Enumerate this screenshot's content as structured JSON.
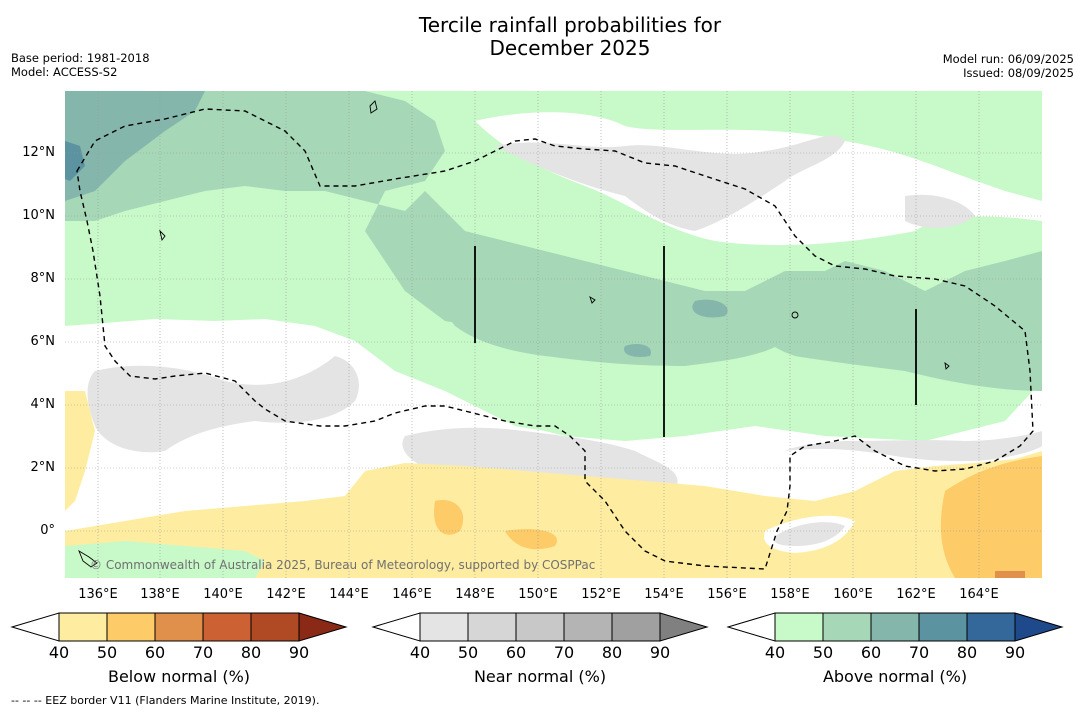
{
  "title_line1": "Tercile rainfall probabilities for",
  "title_line2": "December 2025",
  "base_period": "Base period: 1981-2018",
  "model": "Model: ACCESS-S2",
  "model_run": "Model run: 06/09/2025",
  "issued": "Issued: 08/09/2025",
  "copyright": "© Commonwealth of Australia 2025, Bureau of Meteorology, supported by COSPPac",
  "footer": "-- -- -- EEZ border V11 (Flanders Marine Institute, 2019).",
  "lat_ticks": [
    "12°N",
    "10°N",
    "8°N",
    "6°N",
    "4°N",
    "2°N",
    "0°"
  ],
  "lon_ticks": [
    "136°E",
    "138°E",
    "140°E",
    "142°E",
    "144°E",
    "146°E",
    "148°E",
    "150°E",
    "152°E",
    "154°E",
    "156°E",
    "158°E",
    "160°E",
    "162°E",
    "164°E"
  ],
  "colorbars": [
    {
      "label": "Below normal (%)",
      "ticks": [
        "40",
        "50",
        "60",
        "70",
        "80",
        "90"
      ],
      "colors": [
        "#ffffff",
        "#feeda0",
        "#fdcb67",
        "#e0904a",
        "#cc6234",
        "#b04a24",
        "#8a2a16"
      ]
    },
    {
      "label": "Near normal (%)",
      "ticks": [
        "40",
        "50",
        "60",
        "70",
        "80",
        "90"
      ],
      "colors": [
        "#ffffff",
        "#e4e4e4",
        "#d6d6d6",
        "#c8c8c8",
        "#b4b4b4",
        "#a0a0a0",
        "#808080"
      ]
    },
    {
      "label": "Above normal (%)",
      "ticks": [
        "40",
        "50",
        "60",
        "70",
        "80",
        "90"
      ],
      "colors": [
        "#ffffff",
        "#c8f9c9",
        "#a6d8b7",
        "#85b6ab",
        "#5b93a0",
        "#34679a",
        "#1e4a8c"
      ]
    }
  ]
}
